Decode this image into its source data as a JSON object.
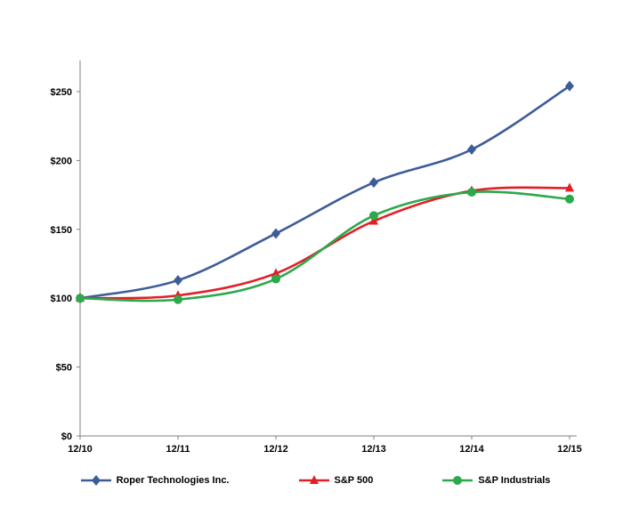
{
  "chart_data": {
    "type": "line",
    "title": "",
    "xlabel": "",
    "ylabel": "",
    "categories": [
      "12/10",
      "12/11",
      "12/12",
      "12/13",
      "12/14",
      "12/15"
    ],
    "y_ticks": [
      {
        "label": "$0",
        "value": 0
      },
      {
        "label": "$50",
        "value": 50
      },
      {
        "label": "$100",
        "value": 100
      },
      {
        "label": "$150",
        "value": 150
      },
      {
        "label": "$200",
        "value": 200
      },
      {
        "label": "$250",
        "value": 250
      }
    ],
    "ylim": [
      0,
      270
    ],
    "grid": false,
    "legend_position": "bottom",
    "axis_color": "#7f7f7f",
    "series": [
      {
        "name": "Roper Technologies Inc.",
        "values": [
          100,
          113,
          147,
          184,
          208,
          254
        ],
        "color": "#3E5C9A",
        "marker": "diamond"
      },
      {
        "name": "S&P 500",
        "values": [
          100,
          102,
          118,
          156,
          178,
          180
        ],
        "color": "#E21F26",
        "marker": "triangle"
      },
      {
        "name": "S&P Industrials",
        "values": [
          100,
          99,
          114,
          160,
          177,
          172
        ],
        "color": "#2BA94B",
        "marker": "circle"
      }
    ]
  }
}
